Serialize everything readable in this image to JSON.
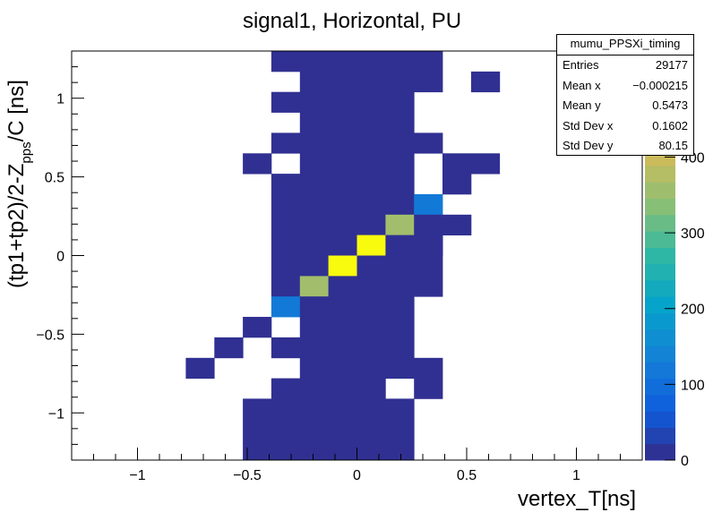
{
  "chart_data": {
    "type": "heatmap",
    "title": "signal1, Horizontal, PU",
    "xlabel": "vertex_T[ns]",
    "ylabel": "(tp1+tp2)/2-Z_pps/C [ns]",
    "ylabel_parts": {
      "main": "(tp1+tp2)/2-Z",
      "subscript": "pps",
      "suffix": "/C [ns]"
    },
    "xlim": [
      -1.3,
      1.3
    ],
    "ylim": [
      -1.3,
      1.3
    ],
    "x_ticks": [
      -1,
      -0.5,
      0,
      0.5,
      1
    ],
    "x_tick_labels": [
      "−1",
      "−0.5",
      "0",
      "0.5",
      "1"
    ],
    "y_ticks": [
      -1,
      -0.5,
      0,
      0.5,
      1
    ],
    "y_tick_labels": [
      "−1",
      "−0.5",
      "0",
      "0.5",
      "1"
    ],
    "colorbar": {
      "min": 0,
      "max": 540,
      "tick_values": [
        0,
        100,
        200,
        300,
        400
      ],
      "tick_labels": [
        "0",
        "100",
        "200",
        "300",
        "400"
      ]
    },
    "bin_width": 0.13,
    "bins": [
      {
        "x": [
          -0.39,
          0.39
        ],
        "y": [
          1.17,
          1.3
        ],
        "v": 8
      },
      {
        "x": [
          -0.26,
          0.39
        ],
        "y": [
          1.04,
          1.17
        ],
        "v": 8
      },
      {
        "x": [
          0.52,
          0.65
        ],
        "y": [
          1.04,
          1.17
        ],
        "v": 8
      },
      {
        "x": [
          -0.39,
          0.26
        ],
        "y": [
          0.91,
          1.04
        ],
        "v": 8
      },
      {
        "x": [
          -0.26,
          0.26
        ],
        "y": [
          0.78,
          0.91
        ],
        "v": 8
      },
      {
        "x": [
          -0.39,
          0.39
        ],
        "y": [
          0.65,
          0.78
        ],
        "v": 8
      },
      {
        "x": [
          -0.52,
          -0.39
        ],
        "y": [
          0.52,
          0.65
        ],
        "v": 8
      },
      {
        "x": [
          -0.26,
          0.26
        ],
        "y": [
          0.52,
          0.65
        ],
        "v": 8
      },
      {
        "x": [
          0.39,
          0.65
        ],
        "y": [
          0.52,
          0.65
        ],
        "v": 8
      },
      {
        "x": [
          -0.39,
          0.26
        ],
        "y": [
          0.39,
          0.52
        ],
        "v": 8
      },
      {
        "x": [
          0.39,
          0.52
        ],
        "y": [
          0.39,
          0.52
        ],
        "v": 8
      },
      {
        "x": [
          -0.39,
          0.26
        ],
        "y": [
          0.26,
          0.39
        ],
        "v": 8
      },
      {
        "x": [
          0.26,
          0.39
        ],
        "y": [
          0.26,
          0.39
        ],
        "v": 120
      },
      {
        "x": [
          -0.39,
          0.13
        ],
        "y": [
          0.13,
          0.26
        ],
        "v": 8
      },
      {
        "x": [
          0.13,
          0.26
        ],
        "y": [
          0.13,
          0.26
        ],
        "v": 360
      },
      {
        "x": [
          0.26,
          0.52
        ],
        "y": [
          0.13,
          0.26
        ],
        "v": 8
      },
      {
        "x": [
          -0.39,
          0.0
        ],
        "y": [
          0.0,
          0.13
        ],
        "v": 8
      },
      {
        "x": [
          0.0,
          0.13
        ],
        "y": [
          0.0,
          0.13
        ],
        "v": 540
      },
      {
        "x": [
          0.13,
          0.39
        ],
        "y": [
          0.0,
          0.13
        ],
        "v": 8
      },
      {
        "x": [
          -0.39,
          -0.13
        ],
        "y": [
          -0.13,
          0.0
        ],
        "v": 8
      },
      {
        "x": [
          -0.13,
          0.0
        ],
        "y": [
          -0.13,
          0.0
        ],
        "v": 540
      },
      {
        "x": [
          0.0,
          0.39
        ],
        "y": [
          -0.13,
          0.0
        ],
        "v": 8
      },
      {
        "x": [
          -0.39,
          -0.26
        ],
        "y": [
          -0.26,
          -0.13
        ],
        "v": 8
      },
      {
        "x": [
          -0.26,
          -0.13
        ],
        "y": [
          -0.26,
          -0.13
        ],
        "v": 360
      },
      {
        "x": [
          -0.13,
          0.39
        ],
        "y": [
          -0.26,
          -0.13
        ],
        "v": 8
      },
      {
        "x": [
          -0.39,
          -0.26
        ],
        "y": [
          -0.39,
          -0.26
        ],
        "v": 120
      },
      {
        "x": [
          -0.26,
          0.26
        ],
        "y": [
          -0.39,
          -0.26
        ],
        "v": 8
      },
      {
        "x": [
          -0.52,
          -0.39
        ],
        "y": [
          -0.52,
          -0.39
        ],
        "v": 8
      },
      {
        "x": [
          -0.26,
          0.26
        ],
        "y": [
          -0.52,
          -0.39
        ],
        "v": 8
      },
      {
        "x": [
          -0.65,
          -0.52
        ],
        "y": [
          -0.65,
          -0.52
        ],
        "v": 8
      },
      {
        "x": [
          -0.39,
          0.26
        ],
        "y": [
          -0.65,
          -0.52
        ],
        "v": 8
      },
      {
        "x": [
          -0.78,
          -0.65
        ],
        "y": [
          -0.78,
          -0.65
        ],
        "v": 8
      },
      {
        "x": [
          -0.26,
          0.39
        ],
        "y": [
          -0.78,
          -0.65
        ],
        "v": 8
      },
      {
        "x": [
          -0.39,
          0.13
        ],
        "y": [
          -0.91,
          -0.78
        ],
        "v": 8
      },
      {
        "x": [
          0.26,
          0.39
        ],
        "y": [
          -0.91,
          -0.78
        ],
        "v": 8
      },
      {
        "x": [
          -0.52,
          0.26
        ],
        "y": [
          -1.04,
          -0.91
        ],
        "v": 8
      },
      {
        "x": [
          -0.52,
          0.26
        ],
        "y": [
          -1.17,
          -1.04
        ],
        "v": 8
      },
      {
        "x": [
          -0.52,
          0.26
        ],
        "y": [
          -1.3,
          -1.17
        ],
        "v": 8
      }
    ]
  },
  "stats": {
    "name": "mumu_PPSXi_timing",
    "rows": [
      {
        "label": "Entries",
        "value": "29177"
      },
      {
        "label": "Mean x",
        "value": "−0.000215"
      },
      {
        "label": "Mean y",
        "value": "0.5473"
      },
      {
        "label": "Std Dev x",
        "value": "0.1602"
      },
      {
        "label": "Std Dev y",
        "value": "80.15"
      }
    ]
  }
}
